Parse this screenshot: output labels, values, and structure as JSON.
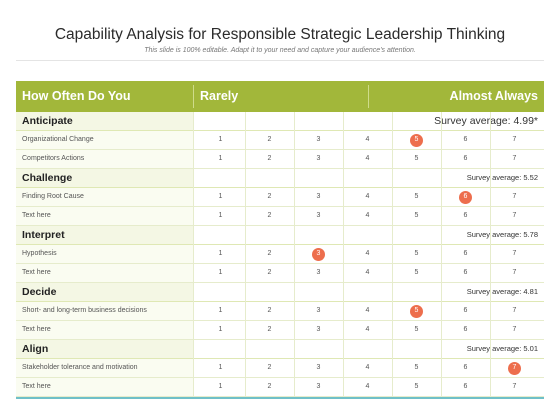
{
  "title": "Capability Analysis for Responsible Strategic Leadership Thinking",
  "subtitle": "This slide is 100% editable. Adapt it to your need and capture your audience’s attention.",
  "header": {
    "col1": "How Often Do You",
    "col2": "Rarely",
    "col3": "Almost Always"
  },
  "scale": [
    "1",
    "2",
    "3",
    "4",
    "5",
    "6",
    "7"
  ],
  "marker_color": "#ed6e4d",
  "header_color": "#a2b73a",
  "sections": [
    {
      "name": "Anticipate",
      "average": "Survey average: 4.99*",
      "rows": [
        {
          "label": "Organizational Change",
          "selected": 5
        },
        {
          "label": "Competitors Actions",
          "selected": null
        }
      ]
    },
    {
      "name": "Challenge",
      "average": "Survey average: 5.52",
      "rows": [
        {
          "label": "Finding Root Cause",
          "selected": 6
        },
        {
          "label": "Text here",
          "selected": null
        }
      ]
    },
    {
      "name": "Interpret",
      "average": "Survey average: 5.78",
      "rows": [
        {
          "label": "Hypothesis",
          "selected": 3
        },
        {
          "label": "Text here",
          "selected": null
        }
      ]
    },
    {
      "name": "Decide",
      "average": "Survey average: 4.81",
      "rows": [
        {
          "label": "Short- and long-term business decisions",
          "selected": 5
        },
        {
          "label": "Text here",
          "selected": null
        }
      ]
    },
    {
      "name": "Align",
      "average": "Survey average: 5.01",
      "rows": [
        {
          "label": "Stakeholder tolerance and motivation",
          "selected": 7
        },
        {
          "label": "Text here",
          "selected": null
        }
      ]
    }
  ]
}
